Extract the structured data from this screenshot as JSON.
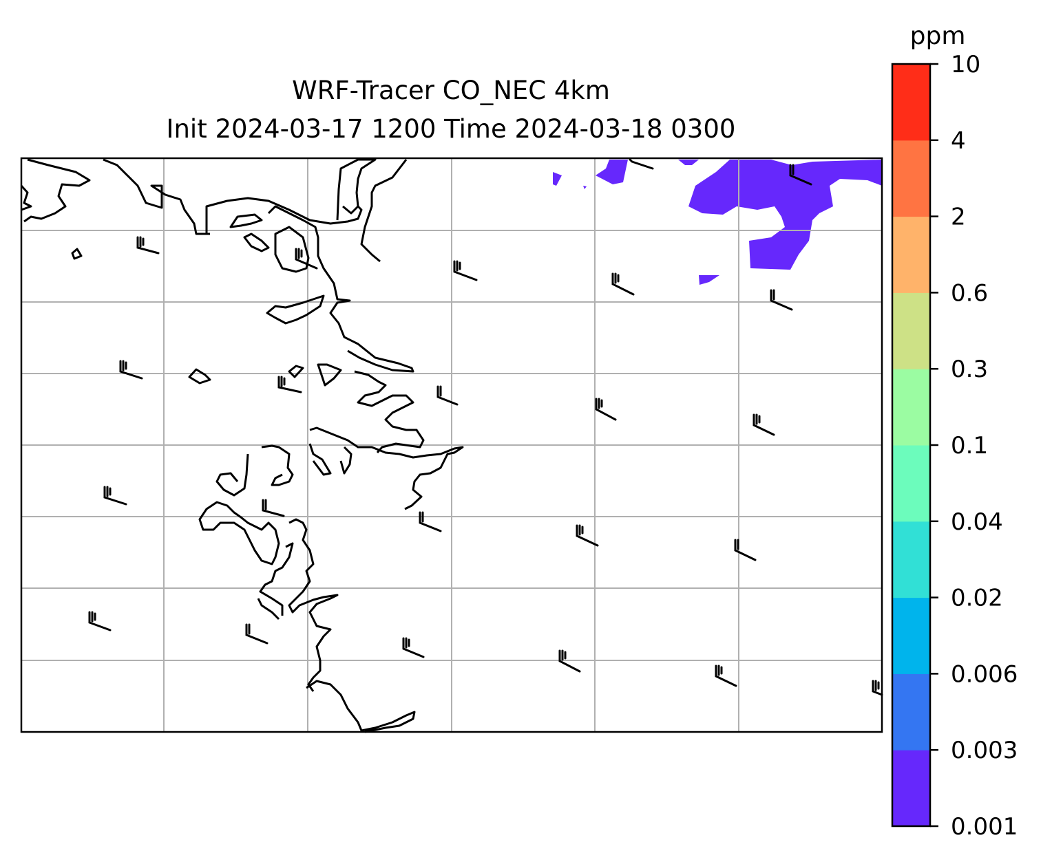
{
  "map": {
    "title_line1": "WRF-Tracer CO_NEC 4km",
    "title_line2": "Init 2024-03-17 1200 Time 2024-03-18 0300",
    "gridlines": true
  },
  "colorbar": {
    "unit": "ppm",
    "levels": [
      "0.001",
      "0.003",
      "0.006",
      "0.02",
      "0.04",
      "0.1",
      "0.3",
      "0.6",
      "2",
      "4",
      "10"
    ],
    "colors": [
      "#6628fc",
      "#3476f2",
      "#00b4ec",
      "#31e0d6",
      "#6cfcbc",
      "#9bfca2",
      "#cde186",
      "#ffb36a",
      "#ff7442",
      "#ff2d18"
    ]
  },
  "overlay": {
    "wind_barbs": true,
    "coastlines": true,
    "shaded_level_color": "#6628fc"
  }
}
